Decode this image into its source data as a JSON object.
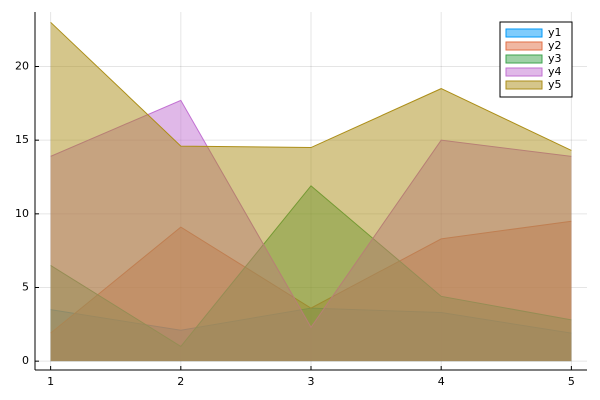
{
  "chart_data": {
    "type": "area",
    "x": [
      1,
      2,
      3,
      4,
      5
    ],
    "series": [
      {
        "name": "y1",
        "color": "#009af9",
        "values": [
          3.5,
          2.1,
          3.6,
          3.3,
          1.9
        ]
      },
      {
        "name": "y2",
        "color": "#e26f46",
        "values": [
          1.9,
          9.1,
          3.6,
          8.3,
          9.5
        ]
      },
      {
        "name": "y3",
        "color": "#3ea44e",
        "values": [
          6.5,
          1.0,
          11.9,
          4.4,
          2.8
        ]
      },
      {
        "name": "y4",
        "color": "#c271d2",
        "values": [
          13.9,
          17.7,
          2.3,
          15.0,
          13.9
        ]
      },
      {
        "name": "y5",
        "color": "#ac8e18",
        "values": [
          23.0,
          14.6,
          14.5,
          18.5,
          14.3
        ]
      }
    ],
    "xlim": [
      0.88,
      5.12
    ],
    "ylim": [
      -0.6,
      23.7
    ],
    "xticks": [
      1,
      2,
      3,
      4,
      5
    ],
    "yticks": [
      0,
      5,
      10,
      15,
      20
    ],
    "grid": true,
    "legend": "top-right",
    "fill_alpha": 0.5
  }
}
